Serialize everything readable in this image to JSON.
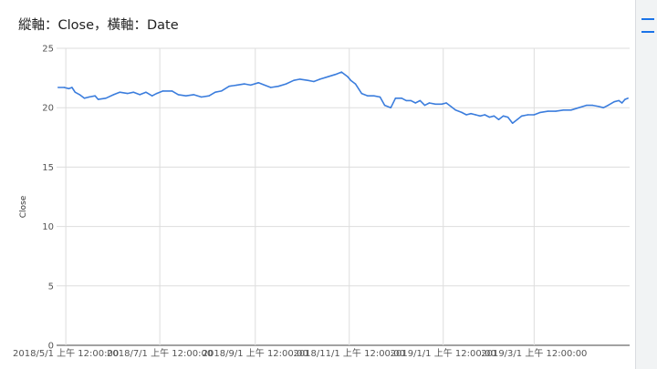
{
  "chart_data": {
    "type": "line",
    "title": "縱軸：Close，橫軸：Date",
    "xlabel": "",
    "ylabel": "Close",
    "ylim": [
      0,
      25
    ],
    "yticks": [
      0,
      5,
      10,
      15,
      20,
      25
    ],
    "grid": true,
    "legend": "none",
    "line_color": "#3b7ddd",
    "xlim": [
      "2018-04-25",
      "2019-05-02"
    ],
    "xticks": [
      {
        "date": "2018-05-01",
        "label": "2018/5/1 上午 12:00:00"
      },
      {
        "date": "2018-07-01",
        "label": "2018/7/1 上午 12:00:00"
      },
      {
        "date": "2018-09-01",
        "label": "2018/9/1 上午 12:00:00"
      },
      {
        "date": "2018-11-01",
        "label": "2018/11/1 上午 12:00:00"
      },
      {
        "date": "2019-01-01",
        "label": "2019/1/1 上午 12:00:00"
      },
      {
        "date": "2019-03-01",
        "label": "2019/3/1 上午 12:00:00"
      }
    ],
    "series": [
      {
        "points": [
          [
            "2018-04-26",
            21.7
          ],
          [
            "2018-04-30",
            21.7
          ],
          [
            "2018-05-03",
            21.6
          ],
          [
            "2018-05-05",
            21.7
          ],
          [
            "2018-05-07",
            21.3
          ],
          [
            "2018-05-10",
            21.1
          ],
          [
            "2018-05-13",
            20.8
          ],
          [
            "2018-05-16",
            20.9
          ],
          [
            "2018-05-20",
            21.0
          ],
          [
            "2018-05-22",
            20.7
          ],
          [
            "2018-05-27",
            20.8
          ],
          [
            "2018-06-01",
            21.1
          ],
          [
            "2018-06-05",
            21.3
          ],
          [
            "2018-06-10",
            21.2
          ],
          [
            "2018-06-14",
            21.3
          ],
          [
            "2018-06-18",
            21.1
          ],
          [
            "2018-06-22",
            21.3
          ],
          [
            "2018-06-26",
            21.0
          ],
          [
            "2018-06-29",
            21.2
          ],
          [
            "2018-07-03",
            21.4
          ],
          [
            "2018-07-09",
            21.4
          ],
          [
            "2018-07-13",
            21.1
          ],
          [
            "2018-07-18",
            21.0
          ],
          [
            "2018-07-23",
            21.1
          ],
          [
            "2018-07-28",
            20.9
          ],
          [
            "2018-08-02",
            21.0
          ],
          [
            "2018-08-06",
            21.3
          ],
          [
            "2018-08-10",
            21.4
          ],
          [
            "2018-08-15",
            21.8
          ],
          [
            "2018-08-20",
            21.9
          ],
          [
            "2018-08-25",
            22.0
          ],
          [
            "2018-08-29",
            21.9
          ],
          [
            "2018-09-03",
            22.1
          ],
          [
            "2018-09-07",
            21.9
          ],
          [
            "2018-09-11",
            21.7
          ],
          [
            "2018-09-16",
            21.8
          ],
          [
            "2018-09-21",
            22.0
          ],
          [
            "2018-09-26",
            22.3
          ],
          [
            "2018-09-30",
            22.4
          ],
          [
            "2018-10-05",
            22.3
          ],
          [
            "2018-10-09",
            22.2
          ],
          [
            "2018-10-13",
            22.4
          ],
          [
            "2018-10-18",
            22.6
          ],
          [
            "2018-10-23",
            22.8
          ],
          [
            "2018-10-27",
            23.0
          ],
          [
            "2018-10-31",
            22.6
          ],
          [
            "2018-11-02",
            22.3
          ],
          [
            "2018-11-05",
            22.0
          ],
          [
            "2018-11-07",
            21.6
          ],
          [
            "2018-11-09",
            21.2
          ],
          [
            "2018-11-13",
            21.0
          ],
          [
            "2018-11-17",
            21.0
          ],
          [
            "2018-11-21",
            20.9
          ],
          [
            "2018-11-24",
            20.2
          ],
          [
            "2018-11-28",
            20.0
          ],
          [
            "2018-12-01",
            20.8
          ],
          [
            "2018-12-05",
            20.8
          ],
          [
            "2018-12-08",
            20.6
          ],
          [
            "2018-12-11",
            20.6
          ],
          [
            "2018-12-14",
            20.4
          ],
          [
            "2018-12-17",
            20.6
          ],
          [
            "2018-12-20",
            20.2
          ],
          [
            "2018-12-23",
            20.4
          ],
          [
            "2018-12-27",
            20.3
          ],
          [
            "2018-12-31",
            20.3
          ],
          [
            "2019-01-03",
            20.4
          ],
          [
            "2019-01-06",
            20.1
          ],
          [
            "2019-01-09",
            19.8
          ],
          [
            "2019-01-13",
            19.6
          ],
          [
            "2019-01-16",
            19.4
          ],
          [
            "2019-01-19",
            19.5
          ],
          [
            "2019-01-22",
            19.4
          ],
          [
            "2019-01-25",
            19.3
          ],
          [
            "2019-01-28",
            19.4
          ],
          [
            "2019-01-31",
            19.2
          ],
          [
            "2019-02-03",
            19.3
          ],
          [
            "2019-02-06",
            19.0
          ],
          [
            "2019-02-09",
            19.3
          ],
          [
            "2019-02-12",
            19.2
          ],
          [
            "2019-02-15",
            18.7
          ],
          [
            "2019-02-18",
            19.0
          ],
          [
            "2019-02-21",
            19.3
          ],
          [
            "2019-02-25",
            19.4
          ],
          [
            "2019-03-01",
            19.4
          ],
          [
            "2019-03-05",
            19.6
          ],
          [
            "2019-03-10",
            19.7
          ],
          [
            "2019-03-15",
            19.7
          ],
          [
            "2019-03-20",
            19.8
          ],
          [
            "2019-03-25",
            19.8
          ],
          [
            "2019-03-30",
            20.0
          ],
          [
            "2019-04-04",
            20.2
          ],
          [
            "2019-04-08",
            20.2
          ],
          [
            "2019-04-12",
            20.1
          ],
          [
            "2019-04-15",
            20.0
          ],
          [
            "2019-04-18",
            20.2
          ],
          [
            "2019-04-22",
            20.5
          ],
          [
            "2019-04-25",
            20.6
          ],
          [
            "2019-04-27",
            20.4
          ],
          [
            "2019-04-29",
            20.7
          ],
          [
            "2019-05-01",
            20.8
          ]
        ]
      }
    ]
  }
}
